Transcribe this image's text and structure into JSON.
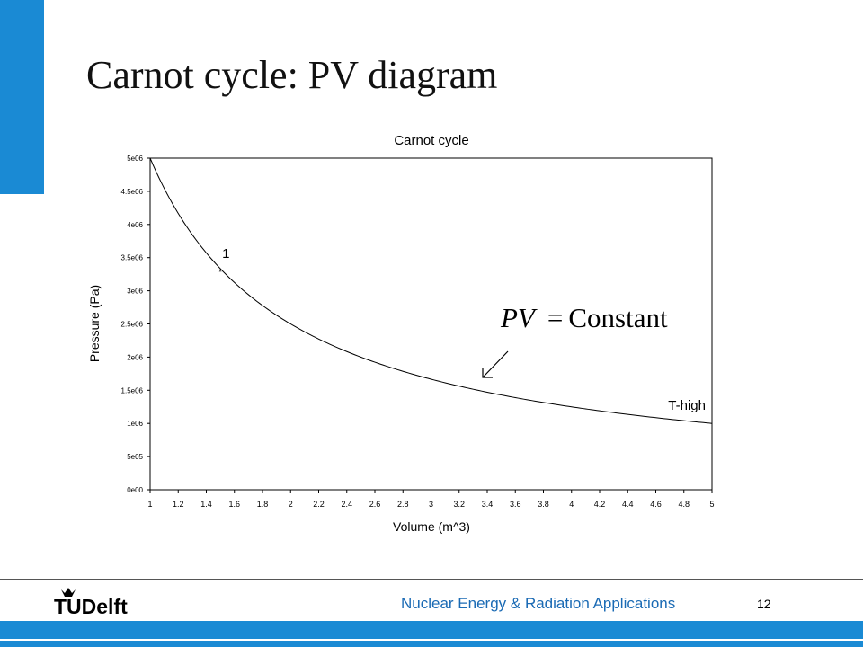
{
  "slide": {
    "title": "Carnot cycle: PV diagram",
    "page_number": "12",
    "footer_text": "Nuclear Energy & Radiation Applications",
    "logo_text": "TUDelft",
    "accent_color": "#1a8ad4",
    "footer_text_color": "#1a6ab4"
  },
  "annotation": {
    "pv": "PV",
    "eq": "=",
    "constant": "Constant",
    "arrow_icon": "arrow-down-left-icon"
  },
  "chart_data": {
    "type": "line",
    "title": "Carnot cycle",
    "xlabel": "Volume (m^3)",
    "ylabel": "Pressure (Pa)",
    "xlim": [
      1,
      5
    ],
    "ylim": [
      0,
      5000000
    ],
    "xticks": [
      "1",
      "1.2",
      "1.4",
      "1.6",
      "1.8",
      "2",
      "2.2",
      "2.4",
      "2.6",
      "2.8",
      "3",
      "3.2",
      "3.4",
      "3.6",
      "3.8",
      "4",
      "4.2",
      "4.4",
      "4.6",
      "4.8",
      "5"
    ],
    "xtick_values": [
      1,
      1.2,
      1.4,
      1.6,
      1.8,
      2,
      2.2,
      2.4,
      2.6,
      2.8,
      3,
      3.2,
      3.4,
      3.6,
      3.8,
      4,
      4.2,
      4.4,
      4.6,
      4.8,
      5
    ],
    "yticks": [
      "0e00",
      "5e05",
      "1e06",
      "1.5e06",
      "2e06",
      "2.5e06",
      "3e06",
      "3.5e06",
      "4e06",
      "4.5e06",
      "5e06"
    ],
    "ytick_values": [
      0,
      500000,
      1000000,
      1500000,
      2000000,
      2500000,
      3000000,
      3500000,
      4000000,
      4500000,
      5000000
    ],
    "series": [
      {
        "name": "T-high",
        "x": [
          1,
          1.1,
          1.2,
          1.3,
          1.4,
          1.5,
          1.6,
          1.7,
          1.8,
          1.9,
          2,
          2.2,
          2.4,
          2.6,
          2.8,
          3,
          3.2,
          3.4,
          3.6,
          3.8,
          4,
          4.2,
          4.4,
          4.6,
          4.8,
          5
        ],
        "y": [
          5000000,
          4545455,
          4166667,
          3846154,
          3571429,
          3333333,
          3125000,
          2941176,
          2777778,
          2631579,
          2500000,
          2272727,
          2083333,
          1923077,
          1785714,
          1666667,
          1562500,
          1470588,
          1388889,
          1315789,
          1250000,
          1190476,
          1136364,
          1086957,
          1041667,
          1000000
        ]
      }
    ],
    "points": [
      {
        "label": "1",
        "x": 1.5,
        "y": 3333333
      }
    ],
    "grid": false,
    "legend": "none"
  }
}
